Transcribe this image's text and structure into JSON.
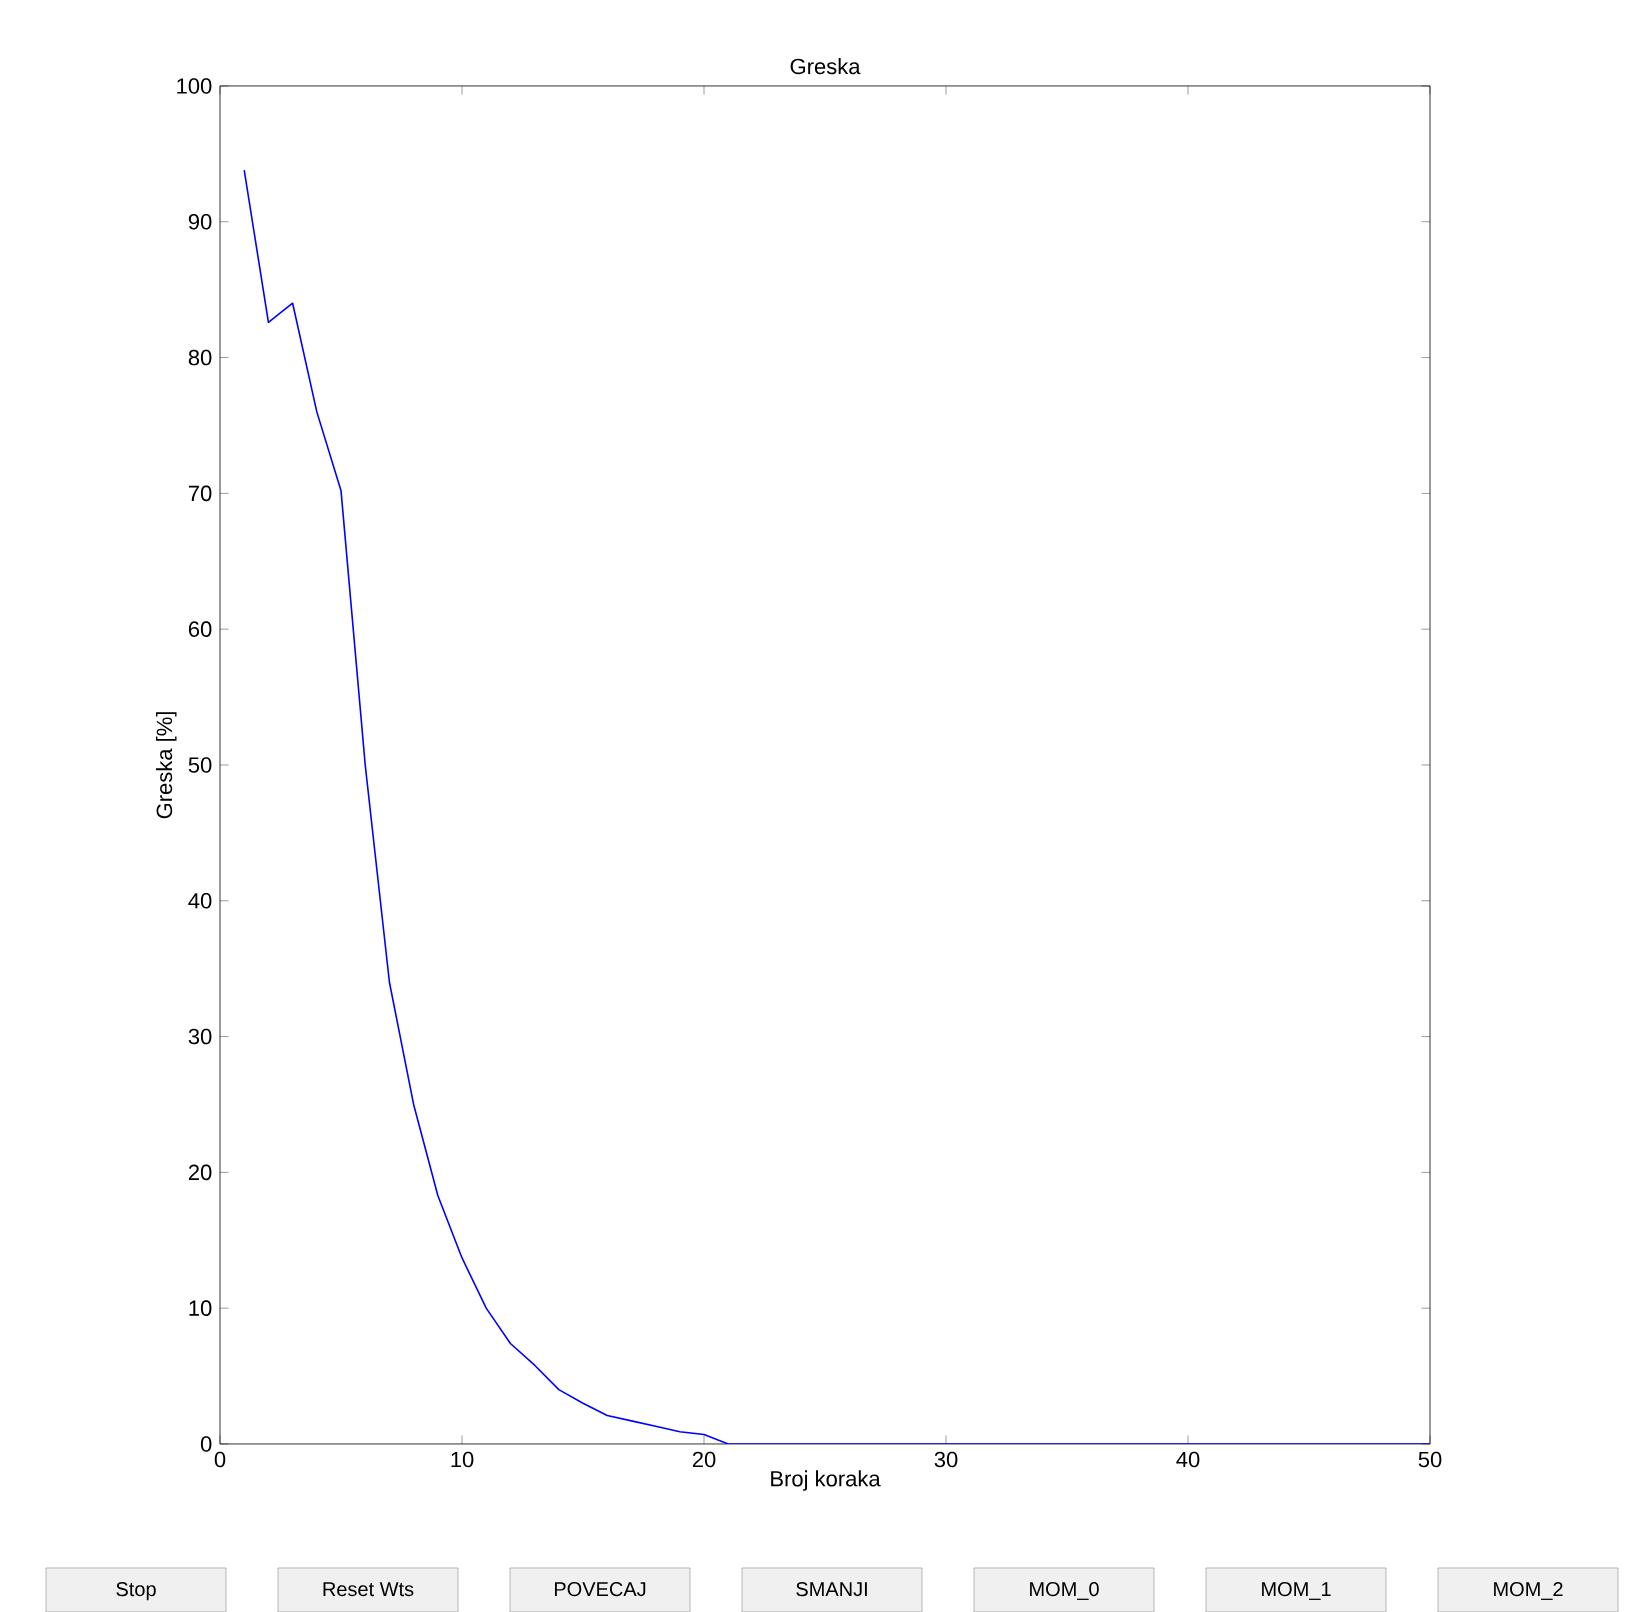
{
  "chart_data": {
    "type": "line",
    "title": "Greska",
    "xlabel": "Broj koraka",
    "ylabel": "Greska [%]",
    "x": [
      1,
      2,
      3,
      4,
      5,
      6,
      7,
      8,
      9,
      10,
      11,
      12,
      13,
      14,
      15,
      16,
      17,
      18,
      19,
      20,
      21,
      22,
      25,
      30,
      35,
      40,
      45,
      50
    ],
    "series": [
      {
        "color": "#0000ff",
        "values": [
          93.8,
          82.6,
          84.0,
          76.0,
          70.2,
          50.0,
          34.0,
          25.0,
          18.3,
          13.7,
          10.0,
          7.4,
          5.8,
          4.0,
          3.0,
          2.1,
          1.7,
          1.3,
          0.9,
          0.7,
          0,
          0,
          0,
          0,
          0,
          0,
          0,
          0
        ]
      }
    ],
    "xlim": [
      0,
      50
    ],
    "ylim": [
      0,
      100
    ],
    "xticks": [
      0,
      10,
      20,
      30,
      40,
      50
    ],
    "yticks": [
      0,
      10,
      20,
      30,
      40,
      50,
      60,
      70,
      80,
      90,
      100
    ],
    "grid": false,
    "marker": "none",
    "line_style": "solid",
    "annotations": [
      "Stop",
      "Reset Wts",
      "POVECAJ",
      "SMANJI",
      "MOM_0",
      "MOM_1",
      "MOM_2"
    ]
  }
}
